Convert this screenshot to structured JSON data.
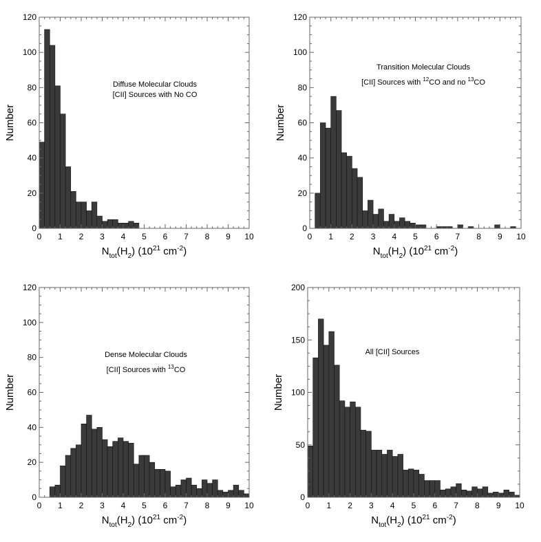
{
  "chart_data": [
    {
      "type": "bar",
      "title": "",
      "annotation": [
        [
          {
            "text": "Diffuse Molecular Clouds"
          }
        ],
        [
          {
            "text": "[CII] Sources with No CO"
          }
        ]
      ],
      "xlabel": {
        "main": "N",
        "sub1": "tot",
        "mid": "(H",
        "sub2": "2",
        "tail": ") (10",
        "sup": "21",
        "unit": " cm",
        "sup2": "-2",
        "end": ")"
      },
      "ylabel": "Number",
      "xlim": [
        0,
        10
      ],
      "ylim": [
        0,
        120
      ],
      "xticks": [
        "0",
        "1",
        "2",
        "3",
        "4",
        "5",
        "6",
        "7",
        "8",
        "9",
        "10"
      ],
      "yticks": [
        "0",
        "20",
        "40",
        "60",
        "80",
        "100",
        "120"
      ],
      "bin_width": 0.25,
      "bin_starts": [
        0,
        0.25,
        0.5,
        0.75,
        1,
        1.25,
        1.5,
        1.75,
        2,
        2.25,
        2.5,
        2.75,
        3,
        3.25,
        3.5,
        3.75,
        4,
        4.25,
        4.5
      ],
      "values": [
        49,
        113,
        104,
        81,
        65,
        35,
        21,
        15,
        15,
        10,
        15,
        7,
        4,
        5,
        5,
        3,
        3,
        4,
        3
      ],
      "bar_color": "#3a3a3a"
    },
    {
      "type": "bar",
      "title": "",
      "annotation": [
        [
          {
            "text": "Transition Molecular Clouds"
          }
        ],
        [
          {
            "text": "[CII] Sources with "
          },
          {
            "text": "12",
            "sup": true
          },
          {
            "text": "CO and no "
          },
          {
            "text": "13",
            "sup": true
          },
          {
            "text": "CO"
          }
        ]
      ],
      "xlabel": {
        "main": "N",
        "sub1": "tot",
        "mid": "(H",
        "sub2": "2",
        "tail": ") (10",
        "sup": "21",
        "unit": " cm",
        "sup2": "-2",
        "end": ")"
      },
      "ylabel": "Number",
      "xlim": [
        0,
        10
      ],
      "ylim": [
        0,
        120
      ],
      "xticks": [
        "0",
        "1",
        "2",
        "3",
        "4",
        "5",
        "6",
        "7",
        "8",
        "9",
        "10"
      ],
      "yticks": [
        "0",
        "20",
        "40",
        "60",
        "80",
        "100",
        "120"
      ],
      "bin_width": 0.25,
      "bin_starts": [
        0.25,
        0.5,
        0.75,
        1,
        1.25,
        1.5,
        1.75,
        2,
        2.25,
        2.5,
        2.75,
        3,
        3.25,
        3.5,
        3.75,
        4,
        4.25,
        4.5,
        4.75,
        5,
        5.25,
        6,
        6.25,
        6.5,
        7,
        7.5,
        8.75,
        9.5
      ],
      "values": [
        20,
        60,
        57,
        75,
        67,
        43,
        41,
        34,
        29,
        10,
        16,
        8,
        11,
        4,
        8,
        4,
        6,
        4,
        3,
        2,
        2,
        1,
        1,
        1,
        2,
        1,
        2,
        1
      ],
      "bar_color": "#3a3a3a"
    },
    {
      "type": "bar",
      "title": "",
      "annotation": [
        [
          {
            "text": "Dense Molecular Clouds"
          }
        ],
        [
          {
            "text": "[CII] Sources with "
          },
          {
            "text": "13",
            "sup": true
          },
          {
            "text": "CO"
          }
        ]
      ],
      "xlabel": {
        "main": "N",
        "sub1": "tot",
        "mid": "(H",
        "sub2": "2",
        "tail": ") (10",
        "sup": "21",
        "unit": " cm",
        "sup2": "-2",
        "end": ")"
      },
      "ylabel": "Number",
      "xlim": [
        0,
        10
      ],
      "ylim": [
        0,
        120
      ],
      "xticks": [
        "0",
        "1",
        "2",
        "3",
        "4",
        "5",
        "6",
        "7",
        "8",
        "9",
        "10"
      ],
      "yticks": [
        "0",
        "20",
        "40",
        "60",
        "80",
        "100",
        "120"
      ],
      "bin_width": 0.25,
      "bin_start": 0.5,
      "values": [
        6,
        7,
        18,
        24,
        28,
        30,
        42,
        47,
        39,
        40,
        33,
        29,
        32,
        34,
        32,
        31,
        19,
        24,
        24,
        20,
        16,
        16,
        15,
        6,
        7,
        10,
        11,
        7,
        5,
        10,
        8,
        10,
        4,
        3,
        4,
        7,
        4,
        2
      ],
      "bar_color": "#3a3a3a"
    },
    {
      "type": "bar",
      "title": "",
      "annotation": [
        [
          {
            "text": "All [CII] Sources"
          }
        ]
      ],
      "xlabel": {
        "main": "N",
        "sub1": "tot",
        "mid": "(H",
        "sub2": "2",
        "tail": ") (10",
        "sup": "21",
        "unit": " cm",
        "sup2": "-2",
        "end": ")"
      },
      "ylabel": "Number",
      "xlim": [
        0,
        10
      ],
      "ylim": [
        0,
        200
      ],
      "xticks": [
        "0",
        "1",
        "2",
        "3",
        "4",
        "5",
        "6",
        "7",
        "8",
        "9",
        "10"
      ],
      "yticks": [
        "0",
        "50",
        "100",
        "150",
        "200"
      ],
      "bin_width": 0.25,
      "bin_start": 0,
      "values": [
        49,
        133,
        170,
        145,
        158,
        126,
        92,
        86,
        91,
        86,
        64,
        63,
        45,
        45,
        41,
        45,
        39,
        41,
        26,
        27,
        26,
        22,
        16,
        16,
        16,
        7,
        8,
        10,
        13,
        7,
        6,
        10,
        8,
        10,
        4,
        5,
        4,
        7,
        5,
        2
      ],
      "bar_color": "#3a3a3a"
    }
  ]
}
